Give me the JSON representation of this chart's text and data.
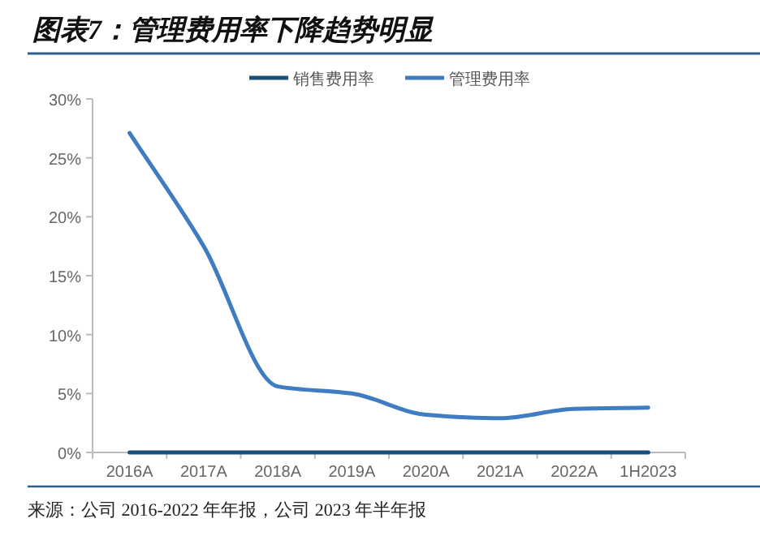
{
  "chart_data": {
    "type": "line",
    "title": "图表7：管理费用率下降趋势明显",
    "annotations": [
      "来源：公司 2016-2022 年年报，公司 2023 年半年报"
    ],
    "categories": [
      "2016A",
      "2017A",
      "2018A",
      "2019A",
      "2020A",
      "2021A",
      "2022A",
      "1H2023"
    ],
    "series": [
      {
        "name": "销售费用率",
        "color": "#1a4f7a",
        "values": [
          0,
          0,
          0,
          0,
          0,
          0,
          0,
          0
        ]
      },
      {
        "name": "管理费用率",
        "color": "#3f7cc0",
        "values": [
          27.1,
          17.5,
          5.6,
          5.0,
          3.2,
          2.9,
          3.7,
          3.8
        ]
      }
    ],
    "ylim": [
      0,
      30
    ],
    "yticks": [
      {
        "value": 0,
        "label": "0%"
      },
      {
        "value": 5,
        "label": "5%"
      },
      {
        "value": 10,
        "label": "10%"
      },
      {
        "value": 15,
        "label": "15%"
      },
      {
        "value": 20,
        "label": "20%"
      },
      {
        "value": 25,
        "label": "25%"
      },
      {
        "value": 30,
        "label": "30%"
      }
    ],
    "legend": "top",
    "grid": false
  }
}
